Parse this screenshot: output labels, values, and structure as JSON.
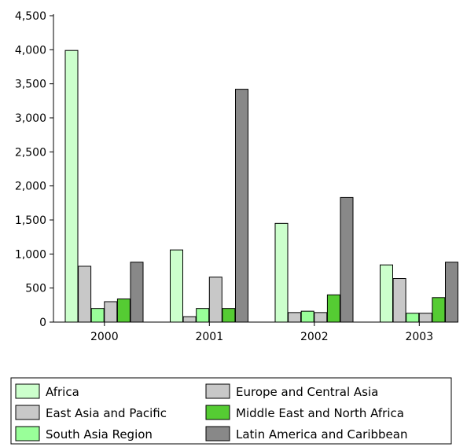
{
  "chart_data": {
    "type": "bar",
    "categories": [
      "2000",
      "2001",
      "2002",
      "2003"
    ],
    "series": [
      {
        "name": "Africa",
        "color": "#ccffcc",
        "values": [
          3990,
          1060,
          1450,
          840
        ]
      },
      {
        "name": "East Asia and Pacific",
        "color": "#c8c8c8",
        "values": [
          820,
          80,
          140,
          640
        ]
      },
      {
        "name": "South Asia Region",
        "color": "#99ff99",
        "values": [
          200,
          200,
          160,
          130
        ]
      },
      {
        "name": "Europe and Central Asia",
        "color": "#c8c8c8",
        "values": [
          300,
          660,
          140,
          130
        ]
      },
      {
        "name": "Middle East and North Africa",
        "color": "#55cc33",
        "values": [
          340,
          200,
          400,
          360
        ]
      },
      {
        "name": "Latin America and Caribbean",
        "color": "#888888",
        "values": [
          880,
          3420,
          1830,
          880
        ]
      }
    ],
    "yticks": [
      "0",
      "500",
      "1,000",
      "1,500",
      "2,000",
      "2,500",
      "3,000",
      "3,500",
      "4,000",
      "4,500"
    ],
    "ylim": [
      0,
      4500
    ],
    "title": "",
    "xlabel": "",
    "ylabel": "",
    "grid": false,
    "legend_position": "bottom"
  }
}
